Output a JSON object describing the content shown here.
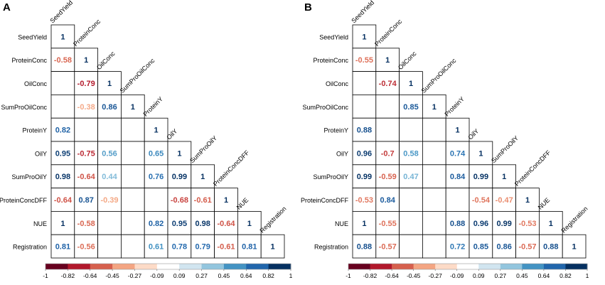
{
  "colors": {
    "scale": [
      "#67001f",
      "#b2182b",
      "#d6604d",
      "#f4a582",
      "#fddbc7",
      "#ffffff",
      "#d1e5f0",
      "#92c5de",
      "#4393c3",
      "#2166ac",
      "#053061"
    ],
    "grid": "#000000"
  },
  "chart_data": [
    {
      "panel": "A",
      "type": "heatmap",
      "subtype": "correlation-matrix-lower-triangle",
      "variables": [
        "SeedYield",
        "ProteinConc",
        "OilConc",
        "SumProOilConc",
        "ProteinY",
        "OilY",
        "SumProOilY",
        "ProteinConcDFF",
        "NUE",
        "Registration"
      ],
      "matrix": [
        [
          1
        ],
        [
          -0.58,
          1
        ],
        [
          null,
          -0.79,
          1
        ],
        [
          null,
          -0.38,
          0.86,
          1
        ],
        [
          0.82,
          null,
          null,
          null,
          1
        ],
        [
          0.95,
          -0.75,
          0.56,
          null,
          0.65,
          1
        ],
        [
          0.98,
          -0.64,
          0.44,
          null,
          0.76,
          0.99,
          1
        ],
        [
          -0.64,
          0.87,
          -0.39,
          null,
          null,
          -0.68,
          -0.61,
          1
        ],
        [
          1,
          -0.58,
          null,
          null,
          0.82,
          0.95,
          0.98,
          -0.64,
          1
        ],
        [
          0.81,
          -0.56,
          null,
          null,
          0.61,
          0.78,
          0.79,
          -0.61,
          0.81,
          1
        ]
      ],
      "colorbar": {
        "range": [
          -1,
          1
        ],
        "tick_labels": [
          "-1",
          "-0.82",
          "-0.64",
          "-0.45",
          "-0.27",
          "-0.09",
          "0.09",
          "0.27",
          "0.45",
          "0.64",
          "0.82",
          "1"
        ]
      }
    },
    {
      "panel": "B",
      "type": "heatmap",
      "subtype": "correlation-matrix-lower-triangle",
      "variables": [
        "SeedYield",
        "ProteinConc",
        "OilConc",
        "SumProOilConc",
        "ProteinY",
        "OilY",
        "SumProOilY",
        "ProteinConcDFF",
        "NUE",
        "Registration"
      ],
      "matrix": [
        [
          1
        ],
        [
          -0.55,
          1
        ],
        [
          null,
          -0.74,
          1
        ],
        [
          null,
          null,
          0.85,
          1
        ],
        [
          0.88,
          null,
          null,
          null,
          1
        ],
        [
          0.96,
          -0.7,
          0.58,
          null,
          0.74,
          1
        ],
        [
          0.99,
          -0.59,
          0.47,
          null,
          0.84,
          0.99,
          1
        ],
        [
          -0.53,
          0.84,
          null,
          null,
          null,
          -0.54,
          -0.47,
          1
        ],
        [
          1,
          -0.55,
          null,
          null,
          0.88,
          0.96,
          0.99,
          -0.53,
          1
        ],
        [
          0.88,
          -0.57,
          null,
          null,
          0.72,
          0.85,
          0.86,
          -0.57,
          0.88,
          1
        ]
      ],
      "colorbar": {
        "range": [
          -1,
          1
        ],
        "tick_labels": [
          "-1",
          "-0.82",
          "-0.64",
          "-0.45",
          "-0.27",
          "-0.09",
          "0.09",
          "0.27",
          "0.45",
          "0.64",
          "0.82",
          "1"
        ]
      }
    }
  ]
}
